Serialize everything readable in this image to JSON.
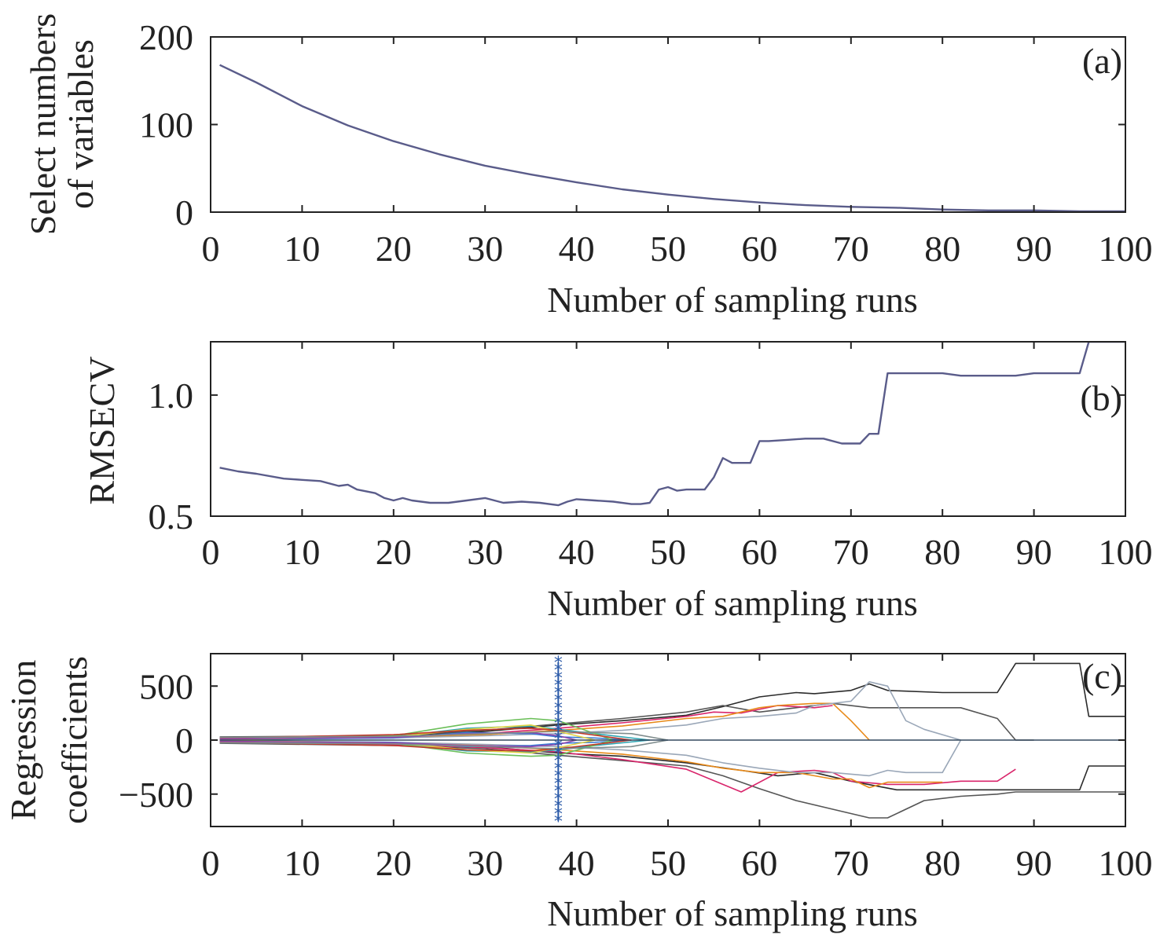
{
  "chart_data": [
    {
      "id": "a",
      "type": "line",
      "panel_label": "(a)",
      "xlabel": "Number of sampling runs",
      "ylabel_lines": [
        "Select numbers",
        "of variables"
      ],
      "xlim": [
        0,
        100
      ],
      "ylim": [
        0,
        200
      ],
      "xticks": [
        0,
        10,
        20,
        30,
        40,
        50,
        60,
        70,
        80,
        90,
        100
      ],
      "yticks": [
        0,
        100,
        200
      ],
      "ytick_labels": [
        "0",
        "100",
        "200"
      ],
      "series": [
        {
          "color": "#5a5c8a",
          "x": [
            1,
            5,
            10,
            15,
            20,
            25,
            30,
            35,
            40,
            45,
            50,
            55,
            60,
            65,
            70,
            75,
            80,
            85,
            90,
            95,
            100
          ],
          "y": [
            168,
            148,
            121,
            99,
            81,
            66,
            53,
            43,
            34,
            26,
            20,
            15,
            11,
            8,
            6,
            5,
            3,
            2,
            2,
            1,
            1
          ]
        }
      ]
    },
    {
      "id": "b",
      "type": "line",
      "panel_label": "(b)",
      "xlabel": "Number of sampling runs",
      "ylabel_lines": [
        "RMSECV"
      ],
      "xlim": [
        0,
        100
      ],
      "ylim": [
        0.5,
        1.22
      ],
      "xticks": [
        0,
        10,
        20,
        30,
        40,
        50,
        60,
        70,
        80,
        90,
        100
      ],
      "yticks": [
        0.5,
        1.0
      ],
      "ytick_labels": [
        "0.5",
        "1.0"
      ],
      "series": [
        {
          "color": "#5a5c8a",
          "x": [
            1,
            3,
            5,
            8,
            10,
            12,
            14,
            15,
            16,
            18,
            19,
            20,
            21,
            22,
            24,
            26,
            28,
            30,
            32,
            34,
            36,
            38,
            39,
            40,
            42,
            44,
            46,
            47,
            48,
            49,
            50,
            51,
            52,
            53,
            54,
            55,
            56,
            57,
            58,
            59,
            60,
            61,
            63,
            65,
            67,
            69,
            70,
            71,
            72,
            73,
            74,
            75,
            78,
            80,
            82,
            85,
            88,
            90,
            92,
            95,
            96,
            97,
            100
          ],
          "y": [
            0.7,
            0.685,
            0.675,
            0.655,
            0.65,
            0.645,
            0.625,
            0.63,
            0.61,
            0.595,
            0.575,
            0.565,
            0.575,
            0.565,
            0.555,
            0.555,
            0.565,
            0.575,
            0.555,
            0.56,
            0.555,
            0.545,
            0.56,
            0.57,
            0.565,
            0.56,
            0.55,
            0.55,
            0.555,
            0.61,
            0.62,
            0.605,
            0.61,
            0.61,
            0.61,
            0.66,
            0.74,
            0.72,
            0.72,
            0.72,
            0.81,
            0.81,
            0.815,
            0.82,
            0.82,
            0.8,
            0.8,
            0.8,
            0.84,
            0.84,
            1.09,
            1.09,
            1.09,
            1.09,
            1.08,
            1.08,
            1.08,
            1.09,
            1.09,
            1.09,
            1.22,
            1.22,
            1.22
          ]
        }
      ]
    },
    {
      "id": "c",
      "type": "line",
      "panel_label": "(c)",
      "xlabel": "Number of sampling runs",
      "ylabel_lines": [
        "Regression",
        "coefficients"
      ],
      "xlim": [
        0,
        100
      ],
      "ylim": [
        -800,
        800
      ],
      "xticks": [
        0,
        10,
        20,
        30,
        40,
        50,
        60,
        70,
        80,
        90,
        100
      ],
      "yticks": [
        -500,
        0,
        500
      ],
      "ytick_labels": [
        "−500",
        "0",
        "500"
      ],
      "marker_line": {
        "x": 38,
        "y_values": [
          -750,
          -680,
          -610,
          -540,
          -470,
          -400,
          -330,
          -260,
          -190,
          -120,
          -50,
          20,
          90,
          160,
          230,
          300,
          370,
          440,
          510,
          580,
          650,
          720
        ],
        "color": "#2b5aa8"
      },
      "series": [
        {
          "color": "#2b2b2b",
          "x": [
            1,
            20,
            30,
            38,
            45,
            52,
            58,
            62,
            66,
            70,
            75,
            80,
            86,
            88,
            95,
            96,
            100
          ],
          "y": [
            -20,
            -30,
            -60,
            -120,
            -150,
            -210,
            -280,
            -330,
            -300,
            -380,
            -460,
            -460,
            -460,
            -460,
            -460,
            -240,
            -240
          ]
        },
        {
          "color": "#2b2b2b",
          "x": [
            1,
            20,
            30,
            38,
            45,
            52,
            56,
            60,
            64,
            66,
            70,
            72,
            74,
            80,
            86,
            88,
            95,
            96,
            100
          ],
          "y": [
            20,
            40,
            80,
            140,
            180,
            230,
            310,
            400,
            440,
            430,
            460,
            520,
            460,
            440,
            440,
            710,
            710,
            220,
            220
          ]
        },
        {
          "color": "#555555",
          "x": [
            1,
            20,
            30,
            38,
            45,
            52,
            56,
            60,
            64,
            68,
            72,
            74,
            78,
            82,
            86,
            88,
            90,
            100
          ],
          "y": [
            -30,
            -50,
            -80,
            -140,
            -190,
            -240,
            -330,
            -450,
            -560,
            -640,
            -720,
            -720,
            -560,
            -520,
            -500,
            -480,
            -480,
            -480
          ]
        },
        {
          "color": "#555555",
          "x": [
            1,
            20,
            30,
            38,
            45,
            52,
            56,
            60,
            64,
            68,
            72,
            74,
            78,
            82,
            86,
            88,
            90
          ],
          "y": [
            30,
            40,
            90,
            150,
            200,
            260,
            320,
            260,
            300,
            340,
            300,
            300,
            300,
            300,
            200,
            0,
            0
          ]
        },
        {
          "color": "#d9256b",
          "x": [
            1,
            20,
            30,
            38,
            45,
            52,
            56,
            58,
            62,
            66,
            68,
            70,
            74,
            78,
            82,
            86,
            88
          ],
          "y": [
            -20,
            -40,
            -70,
            -110,
            -180,
            -270,
            -410,
            -480,
            -300,
            -280,
            -300,
            -380,
            -410,
            -410,
            -380,
            -380,
            -270
          ]
        },
        {
          "color": "#d9256b",
          "x": [
            1,
            20,
            30,
            38,
            45,
            52,
            55,
            58,
            62,
            66,
            68
          ],
          "y": [
            10,
            30,
            60,
            110,
            160,
            220,
            260,
            250,
            320,
            300,
            320
          ]
        },
        {
          "color": "#e88a1a",
          "x": [
            1,
            20,
            30,
            38,
            45,
            52,
            56,
            60,
            62,
            64,
            66,
            68,
            70,
            72
          ],
          "y": [
            15,
            25,
            50,
            90,
            130,
            200,
            220,
            300,
            320,
            330,
            340,
            340,
            180,
            0
          ]
        },
        {
          "color": "#e88a1a",
          "x": [
            1,
            20,
            30,
            38,
            45,
            52,
            56,
            60,
            64,
            68,
            70,
            72,
            74,
            80
          ],
          "y": [
            -15,
            -25,
            -50,
            -90,
            -130,
            -200,
            -260,
            -300,
            -300,
            -360,
            -360,
            -440,
            -390,
            -390
          ]
        },
        {
          "color": "#9aa7b8",
          "x": [
            1,
            20,
            30,
            38,
            45,
            52,
            56,
            60,
            64,
            66,
            70,
            72,
            74,
            76,
            78,
            82
          ],
          "y": [
            10,
            20,
            40,
            60,
            90,
            140,
            200,
            220,
            250,
            320,
            360,
            540,
            500,
            180,
            100,
            0
          ]
        },
        {
          "color": "#9aa7b8",
          "x": [
            1,
            20,
            30,
            38,
            45,
            52,
            56,
            60,
            64,
            68,
            72,
            74,
            76,
            80,
            82
          ],
          "y": [
            -10,
            -20,
            -40,
            -60,
            -90,
            -140,
            -210,
            -260,
            -300,
            -300,
            -330,
            -280,
            -300,
            -300,
            0
          ]
        },
        {
          "color": "#3a7bd5",
          "x": [
            1,
            20,
            28,
            35,
            38,
            42,
            46
          ],
          "y": [
            5,
            20,
            70,
            60,
            30,
            20,
            0
          ]
        },
        {
          "color": "#3a7bd5",
          "x": [
            1,
            20,
            28,
            35,
            38,
            42,
            46
          ],
          "y": [
            -5,
            -20,
            -60,
            -50,
            -30,
            -20,
            0
          ]
        },
        {
          "color": "#2fa6b4",
          "x": [
            1,
            20,
            28,
            35,
            38,
            42,
            48
          ],
          "y": [
            0,
            30,
            110,
            130,
            100,
            60,
            0
          ]
        },
        {
          "color": "#2fa6b4",
          "x": [
            1,
            20,
            28,
            35,
            38,
            42,
            48
          ],
          "y": [
            0,
            -30,
            -100,
            -110,
            -90,
            -50,
            0
          ]
        },
        {
          "color": "#6bbf59",
          "x": [
            1,
            20,
            28,
            35,
            38,
            44
          ],
          "y": [
            10,
            40,
            150,
            200,
            180,
            0
          ]
        },
        {
          "color": "#6bbf59",
          "x": [
            1,
            20,
            28,
            35,
            38,
            44
          ],
          "y": [
            -10,
            -30,
            -120,
            -150,
            -140,
            0
          ]
        },
        {
          "color": "#e3d341",
          "x": [
            1,
            20,
            28,
            35,
            38,
            42
          ],
          "y": [
            5,
            30,
            100,
            140,
            80,
            0
          ]
        },
        {
          "color": "#e3d341",
          "x": [
            1,
            20,
            28,
            35,
            38,
            42
          ],
          "y": [
            -5,
            -25,
            -90,
            -120,
            -70,
            0
          ]
        },
        {
          "color": "#c0392b",
          "x": [
            1,
            20,
            28,
            35,
            38,
            46
          ],
          "y": [
            20,
            50,
            90,
            110,
            90,
            0
          ]
        },
        {
          "color": "#c0392b",
          "x": [
            1,
            20,
            28,
            35,
            38,
            46
          ],
          "y": [
            -20,
            -50,
            -90,
            -100,
            -80,
            0
          ]
        },
        {
          "color": "#8e44ad",
          "x": [
            1,
            20,
            28,
            35,
            38,
            40
          ],
          "y": [
            10,
            25,
            60,
            70,
            40,
            0
          ]
        },
        {
          "color": "#8e44ad",
          "x": [
            1,
            20,
            28,
            35,
            38,
            40
          ],
          "y": [
            -10,
            -25,
            -50,
            -60,
            -40,
            0
          ]
        },
        {
          "color": "#7f8c8d",
          "x": [
            1,
            20,
            30,
            38,
            46,
            50
          ],
          "y": [
            25,
            35,
            60,
            80,
            60,
            0
          ]
        },
        {
          "color": "#7f8c8d",
          "x": [
            1,
            20,
            30,
            38,
            46,
            50
          ],
          "y": [
            -25,
            -35,
            -60,
            -80,
            -60,
            0
          ]
        },
        {
          "color": "#34495e",
          "x": [
            1,
            100
          ],
          "y": [
            0,
            0
          ]
        }
      ]
    }
  ]
}
